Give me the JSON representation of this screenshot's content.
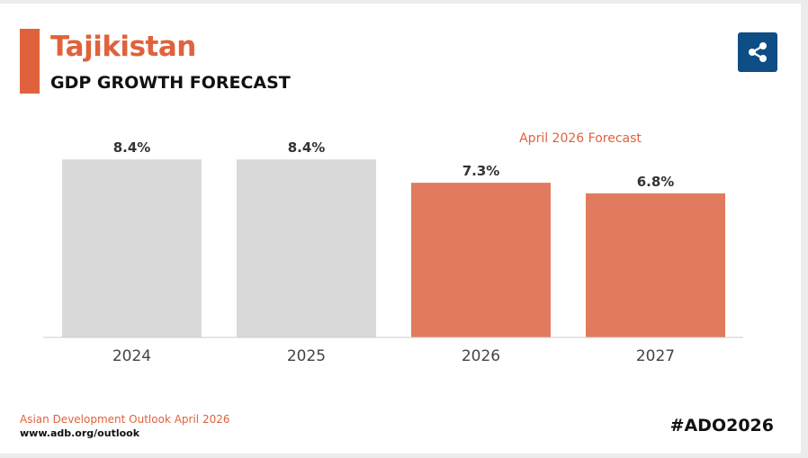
{
  "header": {
    "title": "Tajikistan",
    "subtitle": "GDP GROWTH FORECAST"
  },
  "share": {
    "icon": "share-icon"
  },
  "chart_data": {
    "type": "bar",
    "categories": [
      "2024",
      "2025",
      "2026",
      "2027"
    ],
    "values": [
      8.4,
      8.4,
      7.3,
      6.8
    ],
    "data_labels": [
      "8.4%",
      "8.4%",
      "7.3%",
      "6.8%"
    ],
    "forecast_flags": [
      false,
      false,
      true,
      true
    ],
    "forecast_label": "April 2026 Forecast",
    "ylim": [
      0,
      11
    ],
    "grid": false,
    "colors": {
      "actual": "#d9d9d9",
      "forecast": "#e07b5f",
      "forecast_text": "#e0623c",
      "axis": "#cccccc"
    }
  },
  "footer": {
    "source": "Asian Development Outlook April 2026",
    "url": "www.adb.org/outlook",
    "hashtag": "#ADO2026"
  },
  "colors": {
    "brand": "#e0623c",
    "share_bg": "#0f4d86",
    "card": "#ffffff",
    "page": "#ececec"
  }
}
